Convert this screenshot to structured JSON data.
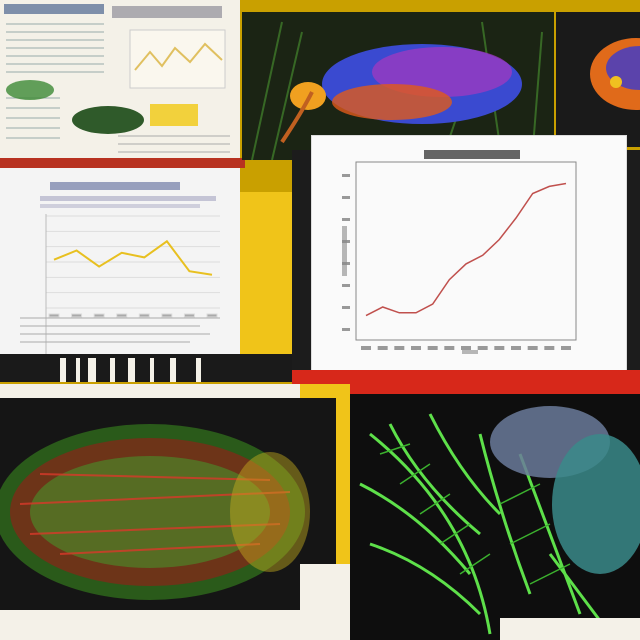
{
  "collage": {
    "description_note": "",
    "colors": {
      "background": "#c9a000",
      "paper": "#f4f1e8",
      "dark": "#141414",
      "accent_yellow": "#f0c419",
      "accent_red": "#d7281a",
      "fern_green": "#5ee04a",
      "line_chart": "#c0504d"
    }
  },
  "chart_data": [
    {
      "type": "line",
      "title": "",
      "xlabel": "",
      "ylabel": "",
      "x": [
        0,
        1,
        2,
        3,
        4,
        5,
        6,
        7,
        8,
        9,
        10,
        11,
        12
      ],
      "values": [
        1.0,
        1.6,
        1.2,
        1.2,
        1.8,
        3.5,
        4.6,
        5.2,
        6.3,
        7.8,
        9.5,
        10.0,
        10.2
      ],
      "ylim": [
        0,
        11
      ],
      "grid": false
    },
    {
      "type": "line",
      "title": "",
      "xlabel": "",
      "ylabel": "",
      "x": [
        0,
        1,
        2,
        3,
        4,
        5,
        6,
        7
      ],
      "values": [
        4.2,
        5.0,
        3.6,
        4.8,
        4.4,
        5.8,
        3.2,
        2.9
      ],
      "ylim": [
        0,
        8
      ],
      "grid": true
    }
  ]
}
